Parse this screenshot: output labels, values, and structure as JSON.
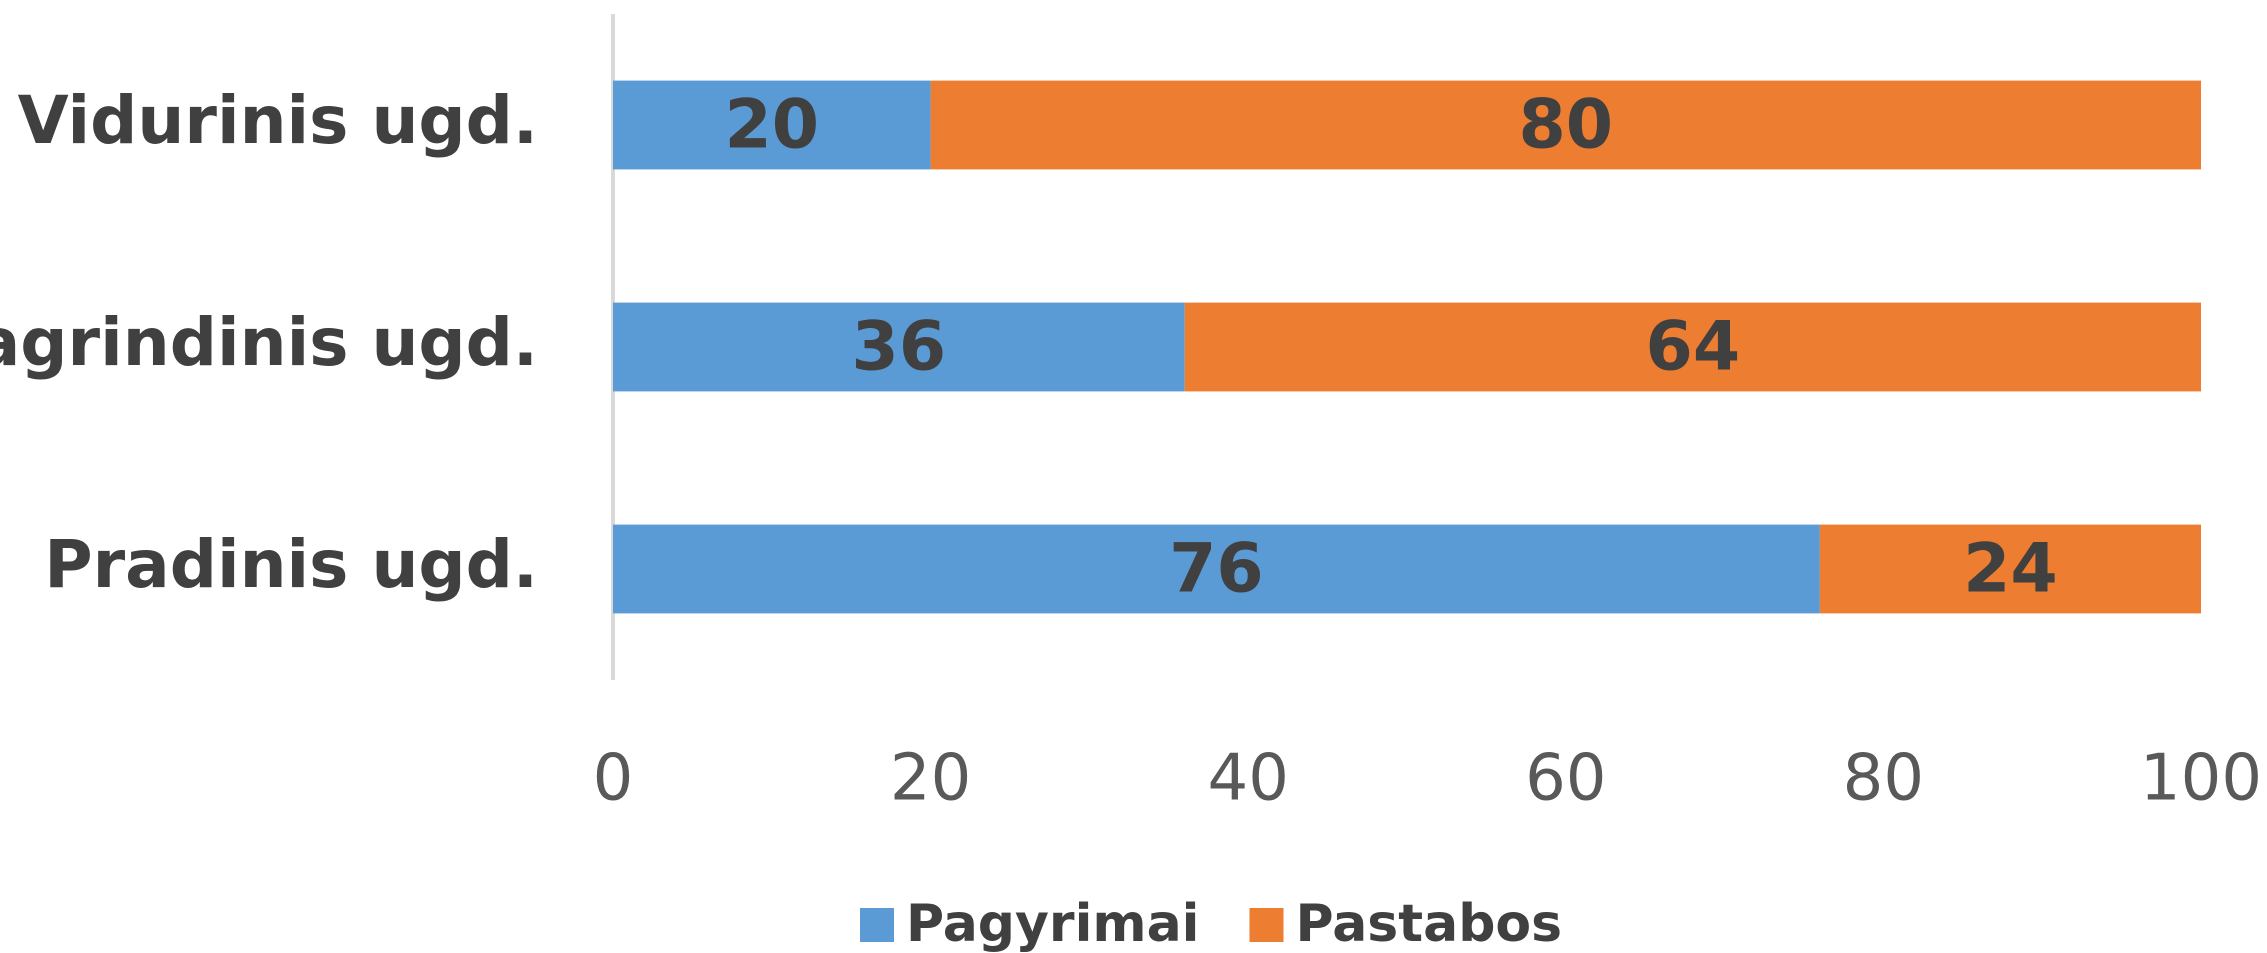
{
  "chart_data": {
    "type": "stacked_bar_horizontal",
    "categories": [
      "Vidurinis ugd.",
      "Pagrindinis ugd.",
      "Pradinis ugd."
    ],
    "series": [
      {
        "name": "Pagyrimai",
        "color": "#5b9bd5",
        "values": [
          20,
          36,
          76
        ]
      },
      {
        "name": "Pastabos",
        "color": "#ed7d31",
        "values": [
          80,
          64,
          24
        ]
      }
    ],
    "xlim": [
      0,
      100
    ],
    "xticks": [
      0,
      20,
      40,
      60,
      80,
      100
    ],
    "grid": false,
    "legend": "bottom"
  }
}
